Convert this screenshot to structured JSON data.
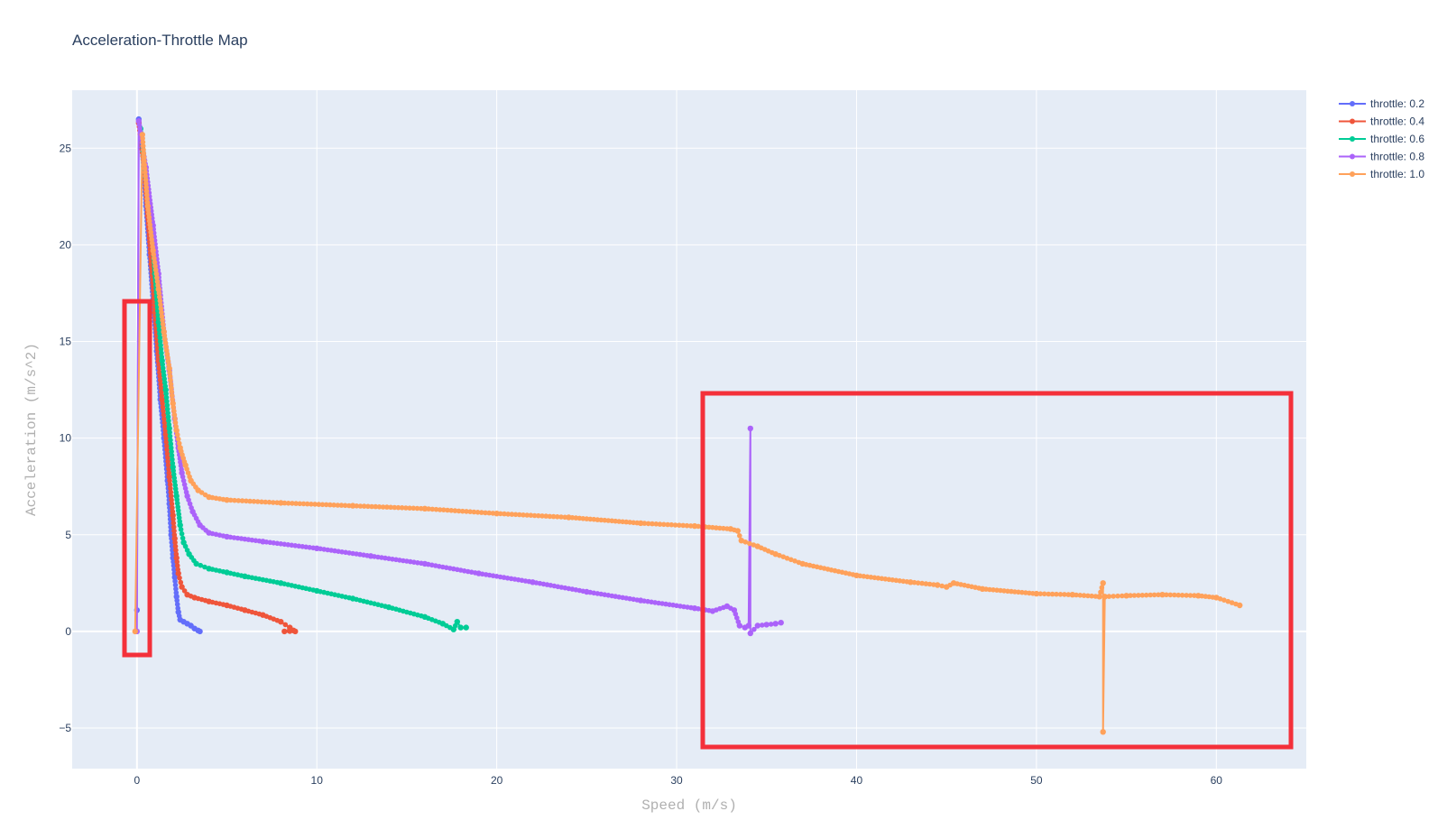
{
  "chart_data": {
    "type": "line",
    "title": "Acceleration-Throttle Map",
    "xlabel": "Speed (m/s)",
    "ylabel": "Acceleration (m/s^2)",
    "xlim": [
      -3.6,
      65
    ],
    "ylim": [
      -7.1,
      28.0
    ],
    "x_ticks": [
      0,
      10,
      20,
      30,
      40,
      50,
      60
    ],
    "y_ticks": [
      -5,
      0,
      5,
      10,
      15,
      20,
      25
    ],
    "x_tick_labels": [
      "0",
      "10",
      "20",
      "30",
      "40",
      "50",
      "60"
    ],
    "y_tick_labels": [
      "−5",
      "0",
      "5",
      "10",
      "15",
      "20",
      "25"
    ],
    "grid": true,
    "legend_position": "top-right",
    "plot_background": "#e5ecf6",
    "series": [
      {
        "name": "throttle: 0.2",
        "color": "#636efa",
        "points": [
          [
            0.0,
            1.1
          ],
          [
            0.1,
            26.5
          ],
          [
            0.3,
            25.0
          ],
          [
            0.5,
            22.0
          ],
          [
            0.7,
            19.5
          ],
          [
            0.9,
            17.0
          ],
          [
            1.1,
            14.5
          ],
          [
            1.3,
            12.0
          ],
          [
            1.5,
            10.0
          ],
          [
            1.7,
            7.8
          ],
          [
            1.8,
            6.6
          ],
          [
            1.9,
            5.0
          ],
          [
            2.0,
            3.8
          ],
          [
            2.1,
            2.8
          ],
          [
            2.2,
            1.8
          ],
          [
            2.3,
            1.0
          ],
          [
            2.4,
            0.6
          ],
          [
            2.6,
            0.5
          ],
          [
            2.8,
            0.4
          ],
          [
            3.0,
            0.3
          ],
          [
            3.2,
            0.15
          ],
          [
            3.4,
            0.05
          ],
          [
            3.5,
            0.0
          ]
        ]
      },
      {
        "name": "throttle: 0.4",
        "color": "#ef553b",
        "points": [
          [
            0.1,
            26.3
          ],
          [
            0.4,
            24.0
          ],
          [
            0.6,
            21.5
          ],
          [
            0.8,
            19.0
          ],
          [
            1.0,
            16.5
          ],
          [
            1.2,
            14.0
          ],
          [
            1.4,
            12.0
          ],
          [
            1.6,
            10.2
          ],
          [
            1.8,
            8.0
          ],
          [
            2.0,
            6.0
          ],
          [
            2.1,
            4.8
          ],
          [
            2.2,
            3.8
          ],
          [
            2.3,
            3.0
          ],
          [
            2.5,
            2.3
          ],
          [
            2.8,
            1.9
          ],
          [
            3.2,
            1.75
          ],
          [
            4.0,
            1.55
          ],
          [
            5.0,
            1.35
          ],
          [
            6.0,
            1.1
          ],
          [
            7.0,
            0.85
          ],
          [
            8.0,
            0.5
          ],
          [
            8.5,
            0.2
          ],
          [
            8.7,
            0.05
          ],
          [
            8.2,
            0.0
          ],
          [
            8.8,
            0.0
          ]
        ]
      },
      {
        "name": "throttle: 0.6",
        "color": "#00cc96",
        "points": [
          [
            0.2,
            26.0
          ],
          [
            0.5,
            23.5
          ],
          [
            0.8,
            21.0
          ],
          [
            1.0,
            18.5
          ],
          [
            1.2,
            16.0
          ],
          [
            1.4,
            14.0
          ],
          [
            1.6,
            12.5
          ],
          [
            1.8,
            10.5
          ],
          [
            2.0,
            8.5
          ],
          [
            2.2,
            7.0
          ],
          [
            2.4,
            5.5
          ],
          [
            2.6,
            4.6
          ],
          [
            2.9,
            4.0
          ],
          [
            3.3,
            3.5
          ],
          [
            4.0,
            3.25
          ],
          [
            5.0,
            3.05
          ],
          [
            6.0,
            2.85
          ],
          [
            8.0,
            2.5
          ],
          [
            10.0,
            2.1
          ],
          [
            12.0,
            1.7
          ],
          [
            14.0,
            1.25
          ],
          [
            16.0,
            0.75
          ],
          [
            17.0,
            0.4
          ],
          [
            17.6,
            0.1
          ],
          [
            17.8,
            0.5
          ],
          [
            18.0,
            0.2
          ],
          [
            18.3,
            0.2
          ]
        ]
      },
      {
        "name": "throttle: 0.8",
        "color": "#ab63fa",
        "points": [
          [
            0.0,
            0.0
          ],
          [
            0.1,
            26.4
          ],
          [
            0.5,
            24.0
          ],
          [
            0.9,
            21.0
          ],
          [
            1.2,
            18.5
          ],
          [
            1.5,
            15.5
          ],
          [
            1.8,
            13.5
          ],
          [
            2.1,
            11.0
          ],
          [
            2.3,
            9.5
          ],
          [
            2.5,
            8.2
          ],
          [
            2.8,
            7.0
          ],
          [
            3.1,
            6.2
          ],
          [
            3.5,
            5.5
          ],
          [
            4.0,
            5.1
          ],
          [
            5.0,
            4.9
          ],
          [
            7.0,
            4.65
          ],
          [
            10.0,
            4.3
          ],
          [
            13.0,
            3.9
          ],
          [
            16.0,
            3.5
          ],
          [
            19.0,
            3.0
          ],
          [
            22.0,
            2.55
          ],
          [
            25.0,
            2.05
          ],
          [
            28.0,
            1.6
          ],
          [
            31.0,
            1.2
          ],
          [
            32.0,
            1.05
          ],
          [
            32.8,
            1.3
          ],
          [
            33.2,
            1.1
          ],
          [
            33.5,
            0.3
          ],
          [
            33.8,
            0.2
          ],
          [
            34.0,
            0.3
          ],
          [
            34.1,
            10.5
          ],
          [
            34.1,
            -0.1
          ],
          [
            34.5,
            0.3
          ],
          [
            35.0,
            0.35
          ],
          [
            35.5,
            0.4
          ],
          [
            35.8,
            0.45
          ]
        ]
      },
      {
        "name": "throttle: 1.0",
        "color": "#ffa15a",
        "points": [
          [
            -0.1,
            0.0
          ],
          [
            0.3,
            25.7
          ],
          [
            0.6,
            22.0
          ],
          [
            0.9,
            19.7
          ],
          [
            1.2,
            17.7
          ],
          [
            1.5,
            15.5
          ],
          [
            1.8,
            13.6
          ],
          [
            2.0,
            11.8
          ],
          [
            2.2,
            10.4
          ],
          [
            2.4,
            9.5
          ],
          [
            2.7,
            8.6
          ],
          [
            3.0,
            7.8
          ],
          [
            3.4,
            7.3
          ],
          [
            4.0,
            6.95
          ],
          [
            5.0,
            6.8
          ],
          [
            8.0,
            6.65
          ],
          [
            12.0,
            6.5
          ],
          [
            16.0,
            6.35
          ],
          [
            20.0,
            6.1
          ],
          [
            24.0,
            5.9
          ],
          [
            28.0,
            5.6
          ],
          [
            31.0,
            5.45
          ],
          [
            33.0,
            5.3
          ],
          [
            33.4,
            5.2
          ],
          [
            33.6,
            4.7
          ],
          [
            34.5,
            4.4
          ],
          [
            35.5,
            4.0
          ],
          [
            37.0,
            3.5
          ],
          [
            40.0,
            2.9
          ],
          [
            43.0,
            2.55
          ],
          [
            44.5,
            2.4
          ],
          [
            45.0,
            2.3
          ],
          [
            45.4,
            2.5
          ],
          [
            47.0,
            2.2
          ],
          [
            50.0,
            1.95
          ],
          [
            52.0,
            1.9
          ],
          [
            53.5,
            1.8
          ],
          [
            53.7,
            2.5
          ],
          [
            53.7,
            -5.2
          ],
          [
            53.8,
            1.8
          ],
          [
            55.0,
            1.85
          ],
          [
            57.0,
            1.9
          ],
          [
            59.0,
            1.85
          ],
          [
            60.0,
            1.75
          ],
          [
            61.3,
            1.35
          ]
        ]
      }
    ]
  }
}
